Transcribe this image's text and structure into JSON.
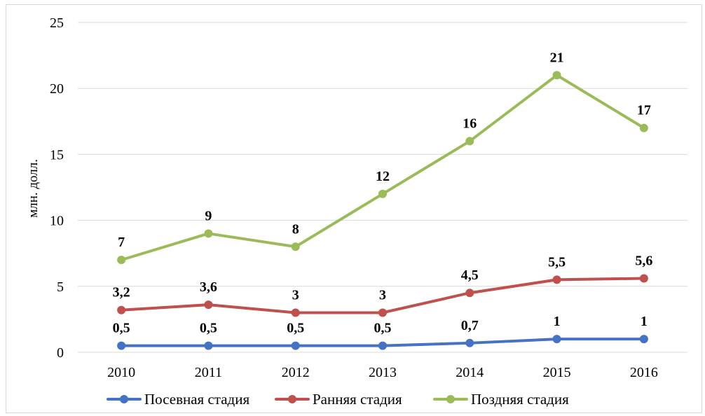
{
  "chart_data": {
    "type": "line",
    "title": "",
    "xlabel": "",
    "ylabel": "млн. долл.",
    "ylim": [
      0,
      25
    ],
    "yticks": [
      "0",
      "5",
      "10",
      "15",
      "20",
      "25"
    ],
    "categories": [
      "2010",
      "2011",
      "2012",
      "2013",
      "2014",
      "2015",
      "2016"
    ],
    "grid": "horizontal",
    "legend_position": "bottom",
    "series": [
      {
        "name": "Посевная стадия",
        "color": "#4472c4",
        "values": [
          0.5,
          0.5,
          0.5,
          0.5,
          0.7,
          1,
          1
        ],
        "labels": [
          "0,5",
          "0,5",
          "0,5",
          "0,5",
          "0,7",
          "1",
          "1"
        ]
      },
      {
        "name": "Ранняя стадия",
        "color": "#c0504d",
        "values": [
          3.2,
          3.6,
          3,
          3,
          4.5,
          5.5,
          5.6
        ],
        "labels": [
          "3,2",
          "3,6",
          "3",
          "3",
          "4,5",
          "5,5",
          "5,6"
        ]
      },
      {
        "name": "Поздняя стадия",
        "color": "#9bbb59",
        "values": [
          7,
          9,
          8,
          12,
          16,
          21,
          17
        ],
        "labels": [
          "7",
          "9",
          "8",
          "12",
          "16",
          "21",
          "17"
        ]
      }
    ]
  }
}
